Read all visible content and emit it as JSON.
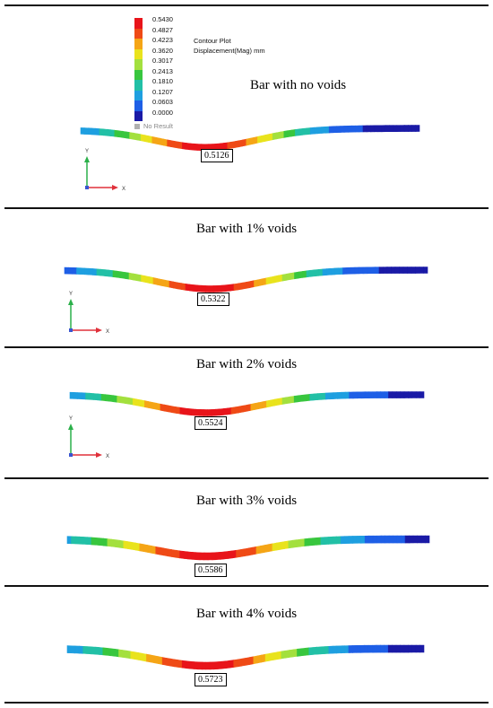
{
  "legend": {
    "title": "Contour Plot",
    "subtitle": "Displacement(Mag)  mm",
    "levels": [
      "0.5430",
      "0.4827",
      "0.4223",
      "0.3620",
      "0.3017",
      "0.2413",
      "0.1810",
      "0.1207",
      "0.0603",
      "0.0000"
    ],
    "no_result": "No Result",
    "colors": [
      "#e8141a",
      "#ef4a16",
      "#f5a516",
      "#e9e31d",
      "#a3e03e",
      "#38c63e",
      "#22c0a6",
      "#1e9fe0",
      "#1e5fe6",
      "#1a1aa6"
    ]
  },
  "axes": {
    "y_label": "Y",
    "x_label": "X"
  },
  "panels": [
    {
      "title": "Bar with no voids",
      "max_displacement": "0.5126"
    },
    {
      "title": "Bar with 1% voids",
      "max_displacement": "0.5322"
    },
    {
      "title": "Bar with 2% voids",
      "max_displacement": "0.5524"
    },
    {
      "title": "Bar with 3% voids",
      "max_displacement": "0.5586"
    },
    {
      "title": "Bar with 4% voids",
      "max_displacement": "0.5723"
    }
  ]
}
